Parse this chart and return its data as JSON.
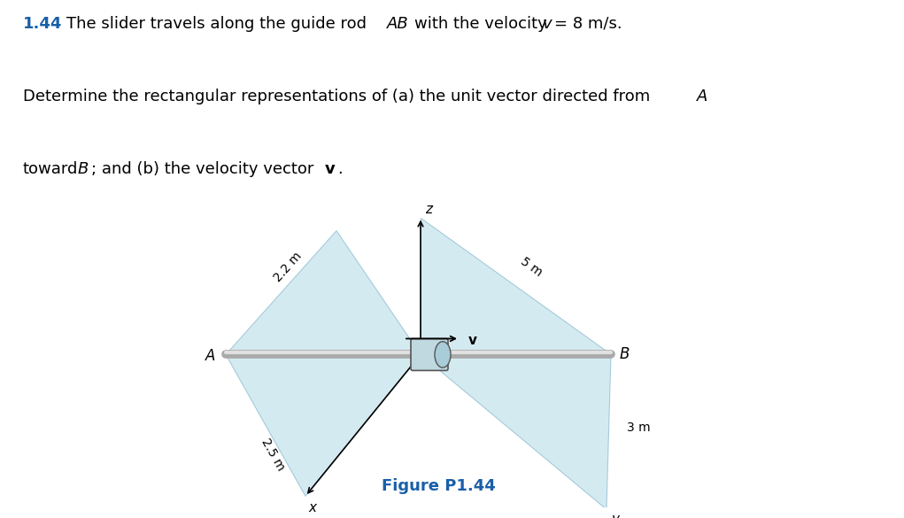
{
  "blue_fill": "#b8dce8",
  "blue_fill_alpha": 0.6,
  "edge_color": "#7ab0c8",
  "rod_color": "#aaaaaa",
  "rod_highlight": "#e0e0e0",
  "slider_body_color": "#c0d8e0",
  "slider_face_color": "#a8ccd8",
  "title_number": "1.44",
  "title_color": "#1a5fa8",
  "fig_label": "Figure P1.44",
  "fig_label_color": "#1a5fa8",
  "dim_22": "2.2 m",
  "dim_25": "2.5 m",
  "dim_5": "5 m",
  "dim_3": "3 m",
  "label_A": "A",
  "label_B": "B",
  "label_v": "v",
  "label_x": "x",
  "label_y": "y",
  "label_z": "z",
  "fontsize_text": 13,
  "fontsize_dim": 10,
  "fontsize_label": 11
}
